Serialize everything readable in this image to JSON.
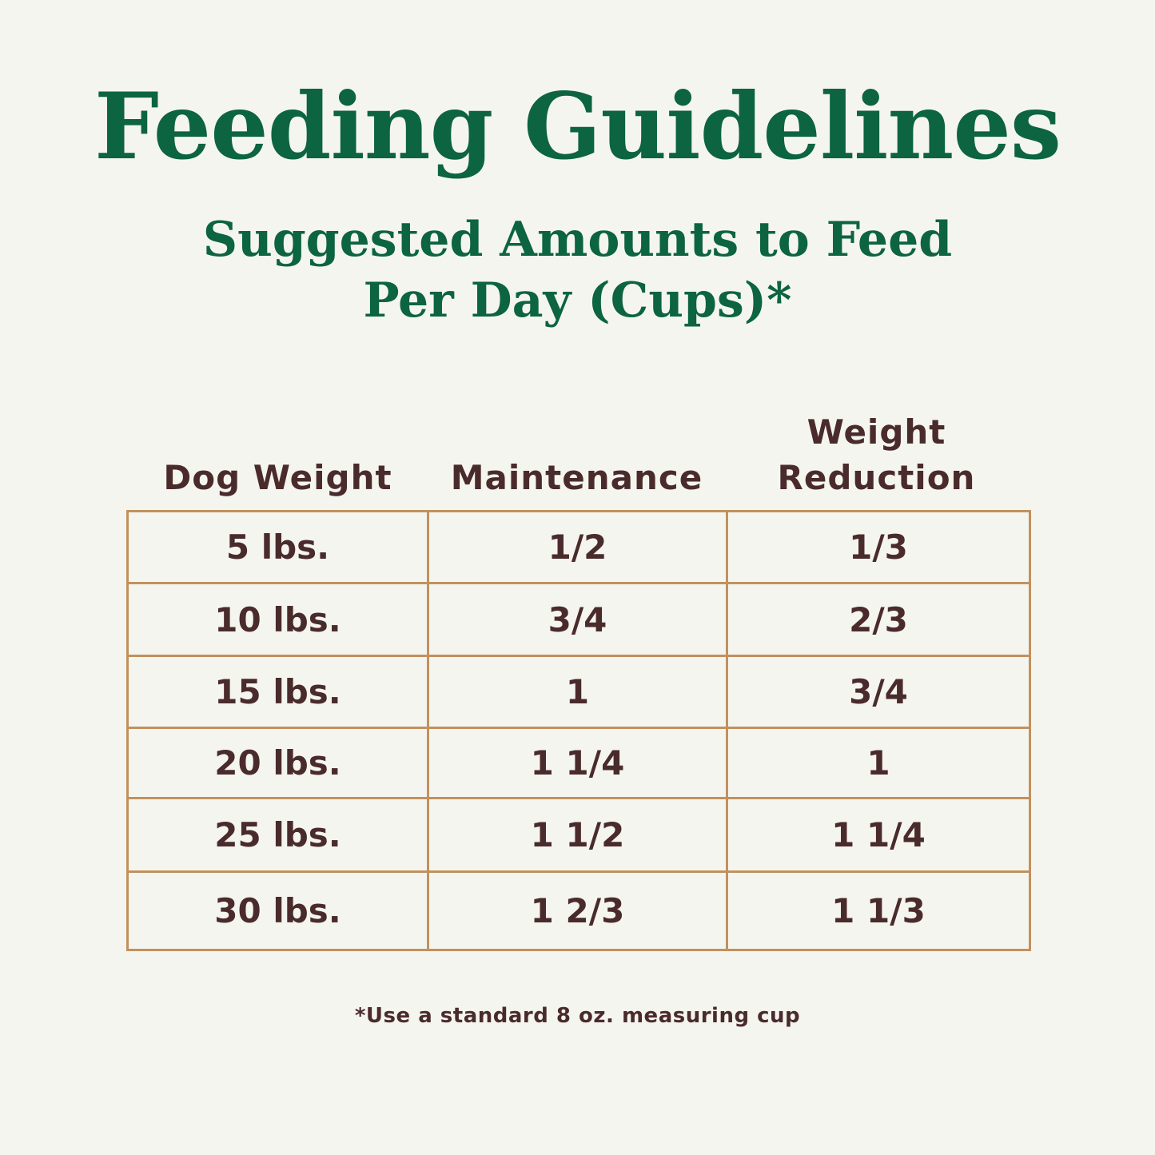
{
  "title": "Feeding Guidelines",
  "subtitle": {
    "line1": "Suggested Amounts to Feed",
    "line2": "Per Day (Cups)*"
  },
  "table": {
    "headers": {
      "weight": "Dog Weight",
      "maintenance": "Maintenance",
      "reduction_line1": "Weight",
      "reduction_line2": "Reduction"
    },
    "rows": [
      {
        "weight": "5 lbs.",
        "maintenance": "1/2",
        "reduction": "1/3"
      },
      {
        "weight": "10 lbs.",
        "maintenance": "3/4",
        "reduction": "2/3"
      },
      {
        "weight": "15 lbs.",
        "maintenance": "1",
        "reduction": "3/4"
      },
      {
        "weight": "20 lbs.",
        "maintenance": "1 1/4",
        "reduction": "1"
      },
      {
        "weight": "25 lbs.",
        "maintenance": "1 1/2",
        "reduction": "1 1/4"
      },
      {
        "weight": "30 lbs.",
        "maintenance": "1 2/3",
        "reduction": "1 1/3"
      }
    ]
  },
  "footnote": "*Use a standard 8 oz. measuring cup",
  "colors": {
    "background": "#f5f5f0",
    "heading": "#0c6440",
    "text": "#4a2b2b",
    "border": "#c1915e"
  }
}
